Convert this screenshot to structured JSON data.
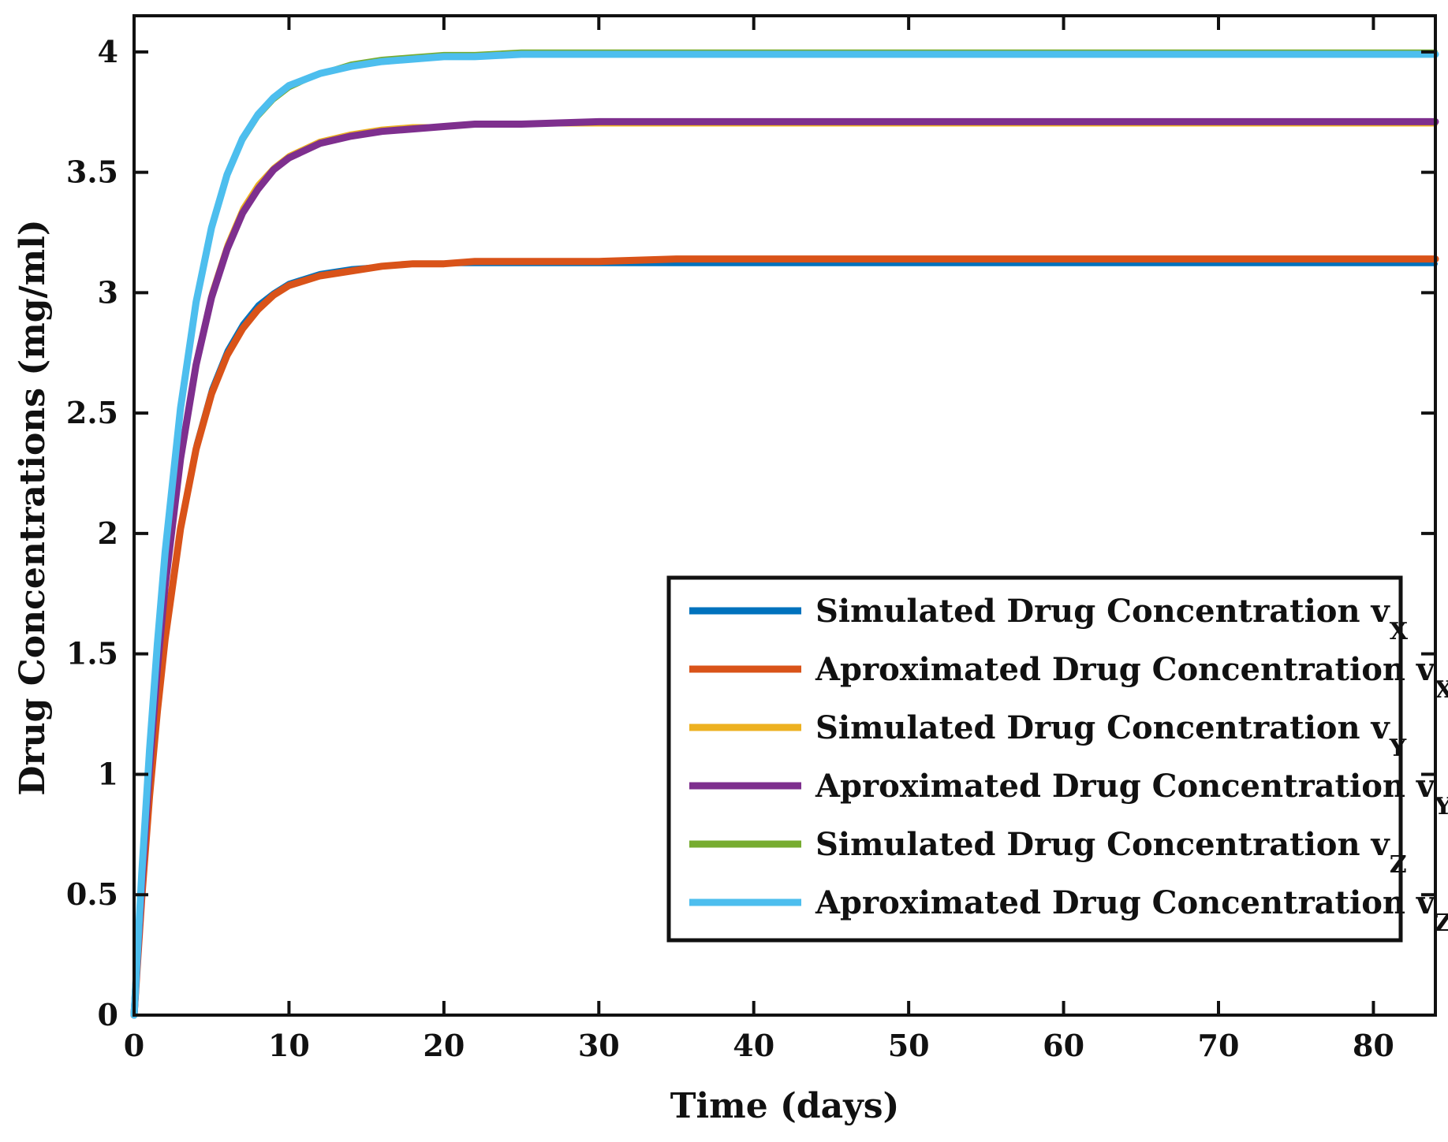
{
  "chart_data": {
    "type": "line",
    "xlabel": "Time (days)",
    "ylabel": "Drug Concentrations  (mg/ml)",
    "xlim": [
      0,
      84
    ],
    "ylim": [
      0,
      4.15
    ],
    "xticks": [
      0,
      10,
      20,
      30,
      40,
      50,
      60,
      70,
      80
    ],
    "yticks": [
      0,
      0.5,
      1,
      1.5,
      2,
      2.5,
      3,
      3.5,
      4
    ],
    "xtick_labels": [
      "0",
      "10",
      "20",
      "30",
      "40",
      "50",
      "60",
      "70",
      "80"
    ],
    "ytick_labels": [
      "0",
      "0.5",
      "1",
      "1.5",
      "2",
      "2.5",
      "3",
      "3.5",
      "4"
    ],
    "grid": false,
    "legend_position": "lower-right",
    "x": [
      0,
      0.5,
      1,
      1.5,
      2,
      3,
      4,
      5,
      6,
      7,
      8,
      9,
      10,
      12,
      14,
      16,
      18,
      20,
      22,
      25,
      30,
      35,
      40,
      50,
      60,
      70,
      80,
      84
    ],
    "series": [
      {
        "name": "Simulated Drug Concentration v",
        "subscript": "X",
        "color": "#0072BD",
        "values": [
          0,
          0.5,
          0.92,
          1.27,
          1.57,
          2.04,
          2.37,
          2.6,
          2.76,
          2.87,
          2.95,
          3.0,
          3.04,
          3.08,
          3.1,
          3.11,
          3.12,
          3.12,
          3.12,
          3.12,
          3.12,
          3.12,
          3.12,
          3.12,
          3.12,
          3.12,
          3.12,
          3.12
        ]
      },
      {
        "name": "Aproximated Drug Concentration v",
        "subscript": "X",
        "color": "#D95319",
        "values": [
          0,
          0.49,
          0.91,
          1.26,
          1.56,
          2.02,
          2.35,
          2.58,
          2.74,
          2.85,
          2.93,
          2.99,
          3.03,
          3.07,
          3.09,
          3.11,
          3.12,
          3.12,
          3.13,
          3.13,
          3.13,
          3.14,
          3.14,
          3.14,
          3.14,
          3.14,
          3.14,
          3.14
        ]
      },
      {
        "name": "Simulated Drug Concentration v",
        "subscript": "Y",
        "color": "#EDB120",
        "values": [
          0,
          0.56,
          1.04,
          1.45,
          1.79,
          2.33,
          2.72,
          3.0,
          3.2,
          3.35,
          3.45,
          3.52,
          3.57,
          3.63,
          3.66,
          3.68,
          3.69,
          3.69,
          3.7,
          3.7,
          3.7,
          3.7,
          3.7,
          3.7,
          3.7,
          3.7,
          3.7,
          3.7
        ]
      },
      {
        "name": "Aproximated Drug Concentration v",
        "subscript": "Y",
        "color": "#7E2F8E",
        "values": [
          0,
          0.55,
          1.03,
          1.44,
          1.78,
          2.31,
          2.7,
          2.98,
          3.18,
          3.33,
          3.43,
          3.51,
          3.56,
          3.62,
          3.65,
          3.67,
          3.68,
          3.69,
          3.7,
          3.7,
          3.71,
          3.71,
          3.71,
          3.71,
          3.71,
          3.71,
          3.71,
          3.71
        ]
      },
      {
        "name": "Simulated Drug Concentration v",
        "subscript": "Z",
        "color": "#77AC30",
        "values": [
          0,
          0.58,
          1.09,
          1.53,
          1.91,
          2.51,
          2.95,
          3.26,
          3.48,
          3.63,
          3.73,
          3.8,
          3.85,
          3.91,
          3.95,
          3.97,
          3.98,
          3.99,
          3.99,
          4.0,
          4.0,
          4.0,
          4.0,
          4.0,
          4.0,
          4.0,
          4.0,
          4.0
        ]
      },
      {
        "name": "Aproximated Drug Concentration v",
        "subscript": "Z",
        "color": "#4DBEEE",
        "values": [
          0,
          0.59,
          1.1,
          1.54,
          1.92,
          2.52,
          2.96,
          3.27,
          3.49,
          3.64,
          3.74,
          3.81,
          3.86,
          3.91,
          3.94,
          3.96,
          3.97,
          3.98,
          3.98,
          3.99,
          3.99,
          3.99,
          3.99,
          3.99,
          3.99,
          3.99,
          3.99,
          3.99
        ]
      }
    ]
  }
}
